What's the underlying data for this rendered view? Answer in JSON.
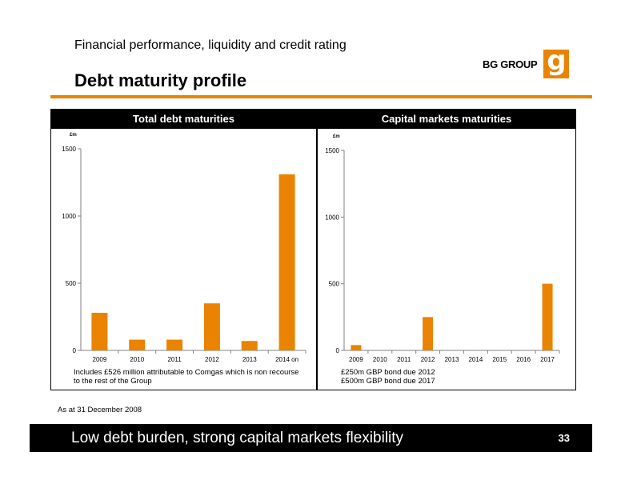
{
  "header": {
    "subtitle": "Financial performance, liquidity and credit rating",
    "title": "Debt maturity profile",
    "logo_text": "BG GROUP",
    "logo_mark": "g"
  },
  "colors": {
    "accent": "#e98300",
    "bar": "#e98300",
    "band": "#000000"
  },
  "chart_data": [
    {
      "type": "bar",
      "title": "Total debt maturities",
      "ylabel": "£m",
      "ylim": [
        0,
        1500
      ],
      "yticks": [
        0,
        500,
        1000,
        1500
      ],
      "categories": [
        "2009",
        "2010",
        "2011",
        "2012",
        "2013",
        "2014 on"
      ],
      "values": [
        280,
        80,
        80,
        350,
        70,
        1310
      ],
      "note": [
        "Includes £526 million attributable to Comgas which is non recourse",
        "to the rest of the Group"
      ]
    },
    {
      "type": "bar",
      "title": "Capital markets maturities",
      "ylabel": "£m",
      "ylim": [
        0,
        1500
      ],
      "yticks": [
        0,
        500,
        1000,
        1500
      ],
      "categories": [
        "2009",
        "2010",
        "2011",
        "2012",
        "2013",
        "2014",
        "2015",
        "2016",
        "2017"
      ],
      "values": [
        40,
        0,
        0,
        250,
        0,
        0,
        0,
        0,
        500
      ],
      "note": [
        "£250m GBP bond due 2012",
        "£500m GBP bond due 2017"
      ]
    }
  ],
  "as_at": "As at 31 December 2008",
  "footer": {
    "text": "Low debt burden, strong capital markets flexibility",
    "page": "33"
  }
}
